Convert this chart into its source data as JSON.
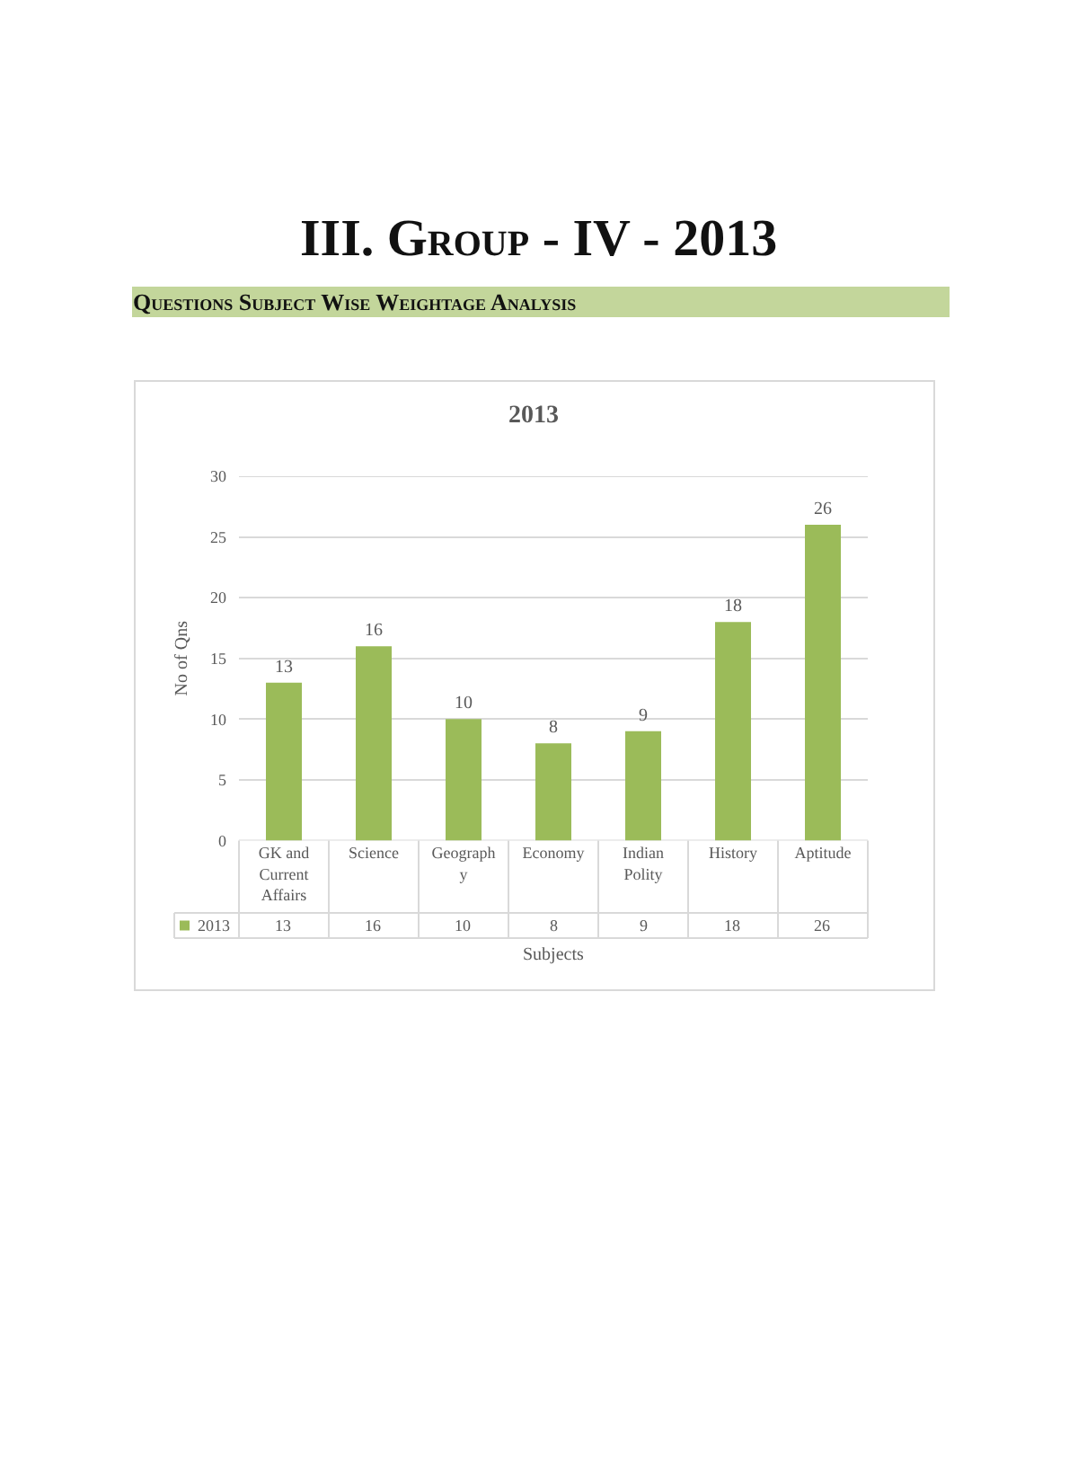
{
  "chart_data": {
    "type": "bar",
    "title": "2013",
    "xlabel": "Subjects",
    "ylabel": "No of Qns",
    "annotations": [
      "III. Group - IV - 2013",
      "Questions Subject Wise Weightage Analysis"
    ],
    "categories": [
      "GK and Current Affairs",
      "Science",
      "Geography",
      "Economy",
      "Indian Polity",
      "History",
      "Aptitude"
    ],
    "series": [
      {
        "name": "2013",
        "color": "#9bbb59",
        "values": [
          13,
          16,
          10,
          8,
          9,
          18,
          26
        ],
        "value_labels": [
          "13",
          "16",
          "10",
          "8",
          "9",
          "18",
          "26"
        ]
      }
    ],
    "ylim": [
      0,
      30
    ],
    "yticks": [
      0,
      5,
      10,
      15,
      20,
      25,
      30
    ],
    "grid": "y",
    "data_labels": true,
    "legend": "bottom left"
  }
}
